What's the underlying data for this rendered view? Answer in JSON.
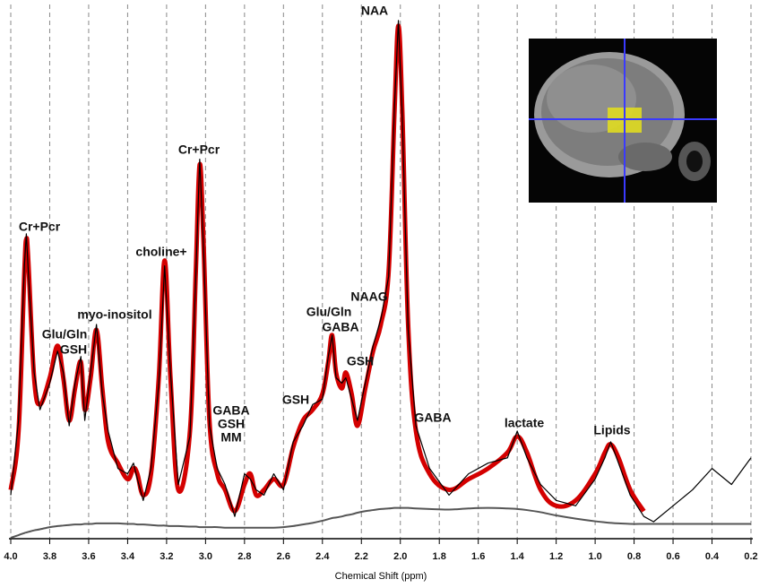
{
  "chart_data": {
    "type": "line",
    "x_label": "Chemical Shift (ppm)",
    "xlim": [
      4,
      0.2
    ],
    "ylim": [
      0,
      100
    ],
    "xticks": [
      {
        "value": 4,
        "label": "4.0"
      },
      3.8,
      3.6,
      3.4,
      3.2,
      {
        "value": 3,
        "label": "3.0"
      },
      2.8,
      2.6,
      2.4,
      2.2,
      {
        "value": 2,
        "label": "2.0"
      },
      1.8,
      1.6,
      1.4,
      1.2,
      {
        "value": 1,
        "label": "1.0"
      },
      0.8,
      0.6,
      0.4,
      0.2
    ],
    "grid": true,
    "annotations": [
      "Cr+Pcr",
      "Glu/Gln",
      "GSH",
      "myo-inositol",
      "choline+",
      "Cr+Pcr",
      "GABA",
      "GSH",
      "MM",
      "GSH",
      "Glu/Gln",
      "GABA",
      "GSH",
      "NAAG",
      "NAA",
      "GABA",
      "lactate",
      "Lipids"
    ],
    "x": [
      4.0,
      3.96,
      3.93,
      3.92,
      3.91,
      3.88,
      3.85,
      3.8,
      3.76,
      3.73,
      3.7,
      3.67,
      3.64,
      3.62,
      3.59,
      3.56,
      3.53,
      3.5,
      3.45,
      3.4,
      3.37,
      3.35,
      3.32,
      3.28,
      3.24,
      3.21,
      3.18,
      3.14,
      3.08,
      3.05,
      3.03,
      3.01,
      2.98,
      2.94,
      2.9,
      2.85,
      2.8,
      2.77,
      2.74,
      2.7,
      2.65,
      2.6,
      2.55,
      2.5,
      2.45,
      2.4,
      2.37,
      2.35,
      2.33,
      2.3,
      2.28,
      2.25,
      2.22,
      2.18,
      2.14,
      2.1,
      2.06,
      2.03,
      2.01,
      1.99,
      1.96,
      1.92,
      1.85,
      1.75,
      1.65,
      1.55,
      1.45,
      1.4,
      1.35,
      1.28,
      1.2,
      1.1,
      1.0,
      0.95,
      0.92,
      0.88,
      0.82,
      0.75,
      0.7,
      0.6,
      0.5,
      0.4,
      0.3,
      0.2
    ],
    "series": [
      {
        "color": "#555555",
        "width": 2,
        "smooth": true,
        "values": [
          0,
          0.5,
          0.9,
          1,
          1.1,
          1.4,
          1.6,
          2,
          2.2,
          2.3,
          2.4,
          2.5,
          2.5,
          2.6,
          2.6,
          2.7,
          2.7,
          2.7,
          2.7,
          2.6,
          2.6,
          2.5,
          2.5,
          2.4,
          2.3,
          2.3,
          2.2,
          2.2,
          2.1,
          2.1,
          2,
          2,
          2,
          2,
          1.9,
          1.9,
          1.9,
          1.9,
          1.9,
          1.9,
          1.9,
          2,
          2.2,
          2.5,
          2.8,
          3.2,
          3.5,
          3.7,
          3.8,
          4,
          4.2,
          4.4,
          4.7,
          5,
          5.2,
          5.4,
          5.5,
          5.6,
          5.6,
          5.6,
          5.6,
          5.5,
          5.4,
          5.3,
          5.5,
          5.6,
          5.5,
          5.4,
          5.2,
          4.8,
          4.2,
          3.6,
          3.1,
          2.9,
          2.8,
          2.7,
          2.6,
          2.6,
          2.6,
          2.6,
          2.6,
          2.6,
          2.6,
          2.6
        ]
      },
      {
        "color": "#d40000",
        "width": 5,
        "smooth": true,
        "values": [
          9,
          20,
          50,
          56,
          52,
          30,
          25,
          30,
          36,
          30,
          22,
          28,
          33,
          24,
          30,
          39,
          28,
          18,
          14,
          11,
          13,
          12,
          8,
          12,
          30,
          52,
          30,
          9,
          20,
          50,
          70,
          55,
          22,
          12,
          9,
          5,
          10,
          12,
          8,
          9,
          11,
          10,
          17,
          22,
          24,
          27,
          33,
          38,
          31,
          28,
          31,
          27,
          21,
          28,
          35,
          40,
          50,
          80,
          96,
          80,
          40,
          20,
          12,
          9,
          11,
          13,
          16,
          19,
          16,
          9,
          6,
          7,
          12,
          16,
          17.5,
          15,
          9,
          5,
          null,
          null,
          null,
          null,
          null,
          null
        ]
      },
      {
        "color": "#000000",
        "width": 1.2,
        "smooth": false,
        "values": [
          8,
          22,
          51,
          57,
          50,
          31,
          24,
          29,
          35,
          31,
          21,
          29,
          34,
          22,
          31,
          40,
          27,
          20,
          13,
          12,
          14,
          11,
          7,
          13,
          29,
          51,
          31,
          10,
          19,
          49,
          71,
          54,
          21,
          13,
          10,
          4,
          12,
          11,
          9,
          8,
          12,
          9,
          18,
          21,
          25,
          26,
          34,
          38,
          30,
          29,
          30,
          26,
          22,
          29,
          36,
          41,
          49,
          81,
          97,
          79,
          39,
          21,
          13,
          8,
          12,
          14,
          15,
          20,
          15,
          10,
          7,
          6,
          11,
          15,
          18,
          14,
          8,
          4,
          3,
          6,
          9,
          13,
          10,
          15
        ]
      }
    ]
  }
}
